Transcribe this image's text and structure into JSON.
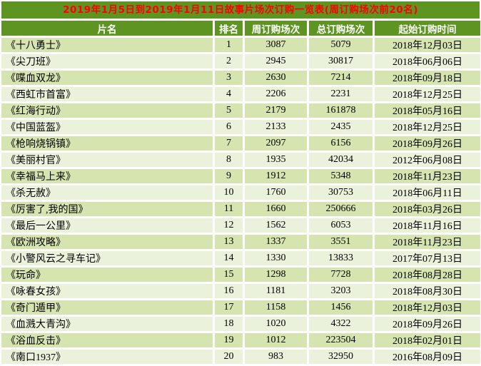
{
  "title": "2019年1月5日到2019年1月11日故事片场次订购一览表(周订购场次前20名)",
  "colors": {
    "accent_green": "#5E9421",
    "row_odd": "#D6E5B0",
    "row_even": "#EBF2DB",
    "title_text": "#FF0000",
    "header_text": "#FFFFFF"
  },
  "chart_data": {
    "type": "table",
    "title": "2019年1月5日到2019年1月11日故事片场次订购一览表(周订购场次前20名)",
    "columns": [
      "片名",
      "排名",
      "周订购场次",
      "总订购场次",
      "起始订购时间"
    ],
    "rows": [
      [
        "《十八勇士》",
        "1",
        "3087",
        "5079",
        "2018年12月03日"
      ],
      [
        "《尖刀班》",
        "2",
        "2945",
        "30817",
        "2018年06月06日"
      ],
      [
        "《喋血双龙》",
        "3",
        "2630",
        "7214",
        "2018年09月18日"
      ],
      [
        "《西虹市首富》",
        "4",
        "2206",
        "2231",
        "2018年12月25日"
      ],
      [
        "《红海行动》",
        "5",
        "2179",
        "161878",
        "2018年05月16日"
      ],
      [
        "《中国蓝盔》",
        "6",
        "2133",
        "2435",
        "2018年12月25日"
      ],
      [
        "《枪响烧锅镇》",
        "7",
        "2097",
        "6156",
        "2018年09月26日"
      ],
      [
        "《美丽村官》",
        "8",
        "1935",
        "42034",
        "2012年06月08日"
      ],
      [
        "《幸福马上来》",
        "9",
        "1912",
        "5348",
        "2018年11月23日"
      ],
      [
        "《杀无赦》",
        "10",
        "1760",
        "30753",
        "2018年06月11日"
      ],
      [
        "《厉害了,我的国》",
        "11",
        "1660",
        "250666",
        "2018年03月26日"
      ],
      [
        "《最后一公里》",
        "12",
        "1562",
        "6053",
        "2018年11月16日"
      ],
      [
        "《欧洲攻略》",
        "13",
        "1337",
        "3551",
        "2018年11月23日"
      ],
      [
        "《小警风云之寻车记》",
        "14",
        "1330",
        "13833",
        "2017年07月13日"
      ],
      [
        "《玩命》",
        "15",
        "1298",
        "7728",
        "2018年08月28日"
      ],
      [
        "《咏春女孩》",
        "16",
        "1181",
        "3203",
        "2018年08月30日"
      ],
      [
        "《奇门遁甲》",
        "17",
        "1158",
        "1456",
        "2018年12月03日"
      ],
      [
        "《血溅大青沟》",
        "18",
        "1020",
        "4322",
        "2018年09月26日"
      ],
      [
        "《浴血反击》",
        "19",
        "1012",
        "223504",
        "2018年02月01日"
      ],
      [
        "《南口1937》",
        "20",
        "983",
        "32950",
        "2016年08月09日"
      ]
    ]
  }
}
